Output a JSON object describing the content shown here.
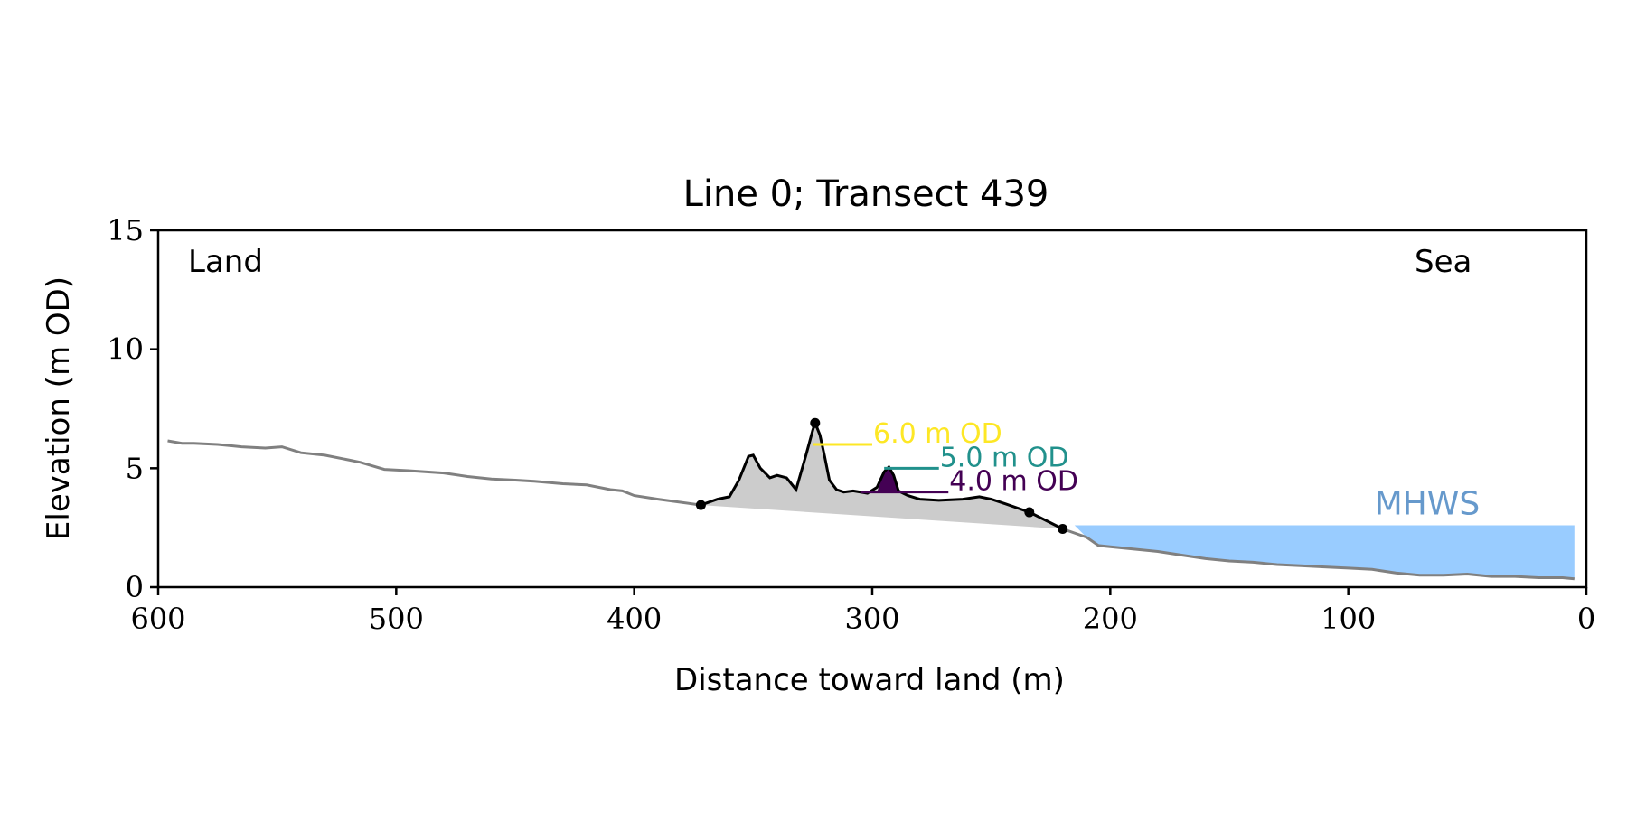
{
  "chart_data": {
    "type": "line",
    "title": "Line 0; Transect 439",
    "xlabel": "Distance toward land (m)",
    "ylabel": "Elevation (m OD)",
    "xlim": [
      600,
      0
    ],
    "ylim": [
      0,
      15
    ],
    "x_ticks": [
      600,
      500,
      400,
      300,
      200,
      100,
      0
    ],
    "y_ticks": [
      0,
      5,
      10,
      15
    ],
    "x_tick_labels": [
      "600",
      "500",
      "400",
      "300",
      "200",
      "100",
      "0"
    ],
    "y_tick_labels": [
      "0",
      "5",
      "10",
      "15"
    ],
    "grid": false,
    "corner_labels": {
      "left": "Land",
      "right": "Sea"
    },
    "profile": {
      "color": "#808080",
      "x": [
        596,
        590,
        585,
        575,
        565,
        555,
        548,
        540,
        530,
        520,
        515,
        505,
        495,
        480,
        470,
        460,
        450,
        442,
        430,
        420,
        410,
        405,
        400,
        390,
        372
      ],
      "y": [
        6.15,
        6.05,
        6.05,
        6.0,
        5.9,
        5.85,
        5.9,
        5.65,
        5.55,
        5.35,
        5.25,
        4.95,
        4.9,
        4.8,
        4.65,
        4.55,
        4.5,
        4.45,
        4.35,
        4.3,
        4.1,
        4.05,
        3.85,
        3.7,
        3.45
      ]
    },
    "dune": {
      "color": "#000000",
      "fill_color": "#cccccc",
      "x": [
        372,
        365,
        360,
        356,
        352,
        350,
        347,
        343,
        340,
        336,
        332,
        328,
        325,
        324,
        322,
        320,
        318,
        315,
        312,
        308,
        302,
        298,
        295,
        293,
        291,
        289,
        287,
        285,
        280,
        272,
        262,
        255,
        250,
        244,
        234,
        220
      ],
      "y": [
        3.45,
        3.7,
        3.8,
        4.5,
        5.5,
        5.55,
        5.0,
        4.6,
        4.7,
        4.6,
        4.1,
        5.5,
        6.6,
        6.9,
        6.4,
        5.5,
        4.5,
        4.1,
        4.0,
        4.05,
        3.95,
        4.2,
        4.85,
        5.05,
        4.7,
        4.05,
        3.95,
        3.85,
        3.7,
        3.65,
        3.7,
        3.8,
        3.7,
        3.5,
        3.15,
        2.45
      ]
    },
    "dune_points": {
      "color": "#000000",
      "x": [
        372,
        324,
        234,
        220
      ],
      "y": [
        3.45,
        6.9,
        3.15,
        2.45
      ]
    },
    "dune_base": {
      "x": [
        372,
        220
      ],
      "y": [
        3.45,
        2.45
      ]
    },
    "beach": {
      "color": "#808080",
      "x": [
        220,
        210,
        205,
        200,
        190,
        180,
        170,
        160,
        150,
        140,
        130,
        120,
        110,
        100,
        90,
        80,
        70,
        60,
        50,
        40,
        30,
        20,
        10,
        5
      ],
      "y": [
        2.45,
        2.1,
        1.75,
        1.7,
        1.6,
        1.5,
        1.35,
        1.2,
        1.1,
        1.05,
        0.95,
        0.9,
        0.85,
        0.8,
        0.75,
        0.6,
        0.5,
        0.5,
        0.55,
        0.45,
        0.45,
        0.4,
        0.4,
        0.35
      ]
    },
    "mhws": {
      "label": "MHWS",
      "level": 2.6,
      "x_start": 215,
      "x_end": 5,
      "fill_color": "#99ccff",
      "label_color": "#6699cc"
    },
    "contours": [
      {
        "label": "6.0 m OD",
        "level": 6.0,
        "x_start": 325,
        "x_end": 300,
        "color": "#fde725"
      },
      {
        "label": "5.0 m OD",
        "level": 5.0,
        "x_start": 295,
        "x_end": 272,
        "color": "#21918c"
      },
      {
        "label": "4.0 m OD",
        "level": 4.0,
        "x_start": 305,
        "x_end": 268,
        "color": "#440154"
      }
    ]
  }
}
